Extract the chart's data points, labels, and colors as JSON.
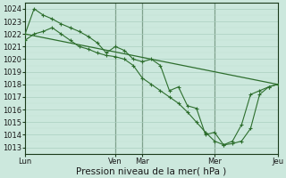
{
  "title": "",
  "xlabel": "Pression niveau de la mer( hPa )",
  "ylabel": "",
  "ylim": [
    1012.5,
    1024.5
  ],
  "xlim": [
    0,
    28
  ],
  "bg_color": "#cce8dd",
  "grid_major_color": "#aacfbf",
  "grid_minor_color": "#c0dfcf",
  "line_color": "#2d6e2d",
  "tick_label_fontsize": 6,
  "xlabel_fontsize": 7.5,
  "day_positions": [
    0,
    10,
    13,
    21,
    28
  ],
  "day_labels": [
    "Lun",
    "Ven",
    "Mar",
    "Mer",
    "Jeu"
  ],
  "yticks": [
    1013,
    1014,
    1015,
    1016,
    1017,
    1018,
    1019,
    1020,
    1021,
    1022,
    1023,
    1024
  ],
  "line1_x": [
    0,
    1,
    2,
    3,
    4,
    5,
    6,
    7,
    8,
    9,
    10,
    11,
    12,
    13,
    14,
    15,
    16,
    17,
    18,
    19,
    20,
    21,
    22,
    23,
    24,
    25,
    26,
    27,
    28
  ],
  "line1_y": [
    1022.0,
    1024.0,
    1023.5,
    1023.2,
    1022.8,
    1022.5,
    1022.2,
    1021.8,
    1021.3,
    1020.5,
    1021.0,
    1020.7,
    1020.0,
    1019.8,
    1020.0,
    1019.5,
    1017.5,
    1017.8,
    1016.3,
    1016.1,
    1014.0,
    1014.2,
    1013.2,
    1013.5,
    1014.8,
    1017.2,
    1017.5,
    1017.8,
    1018.0
  ],
  "line2_x": [
    0,
    28
  ],
  "line2_y": [
    1022.0,
    1018.0
  ],
  "line3_x": [
    0,
    1,
    2,
    3,
    4,
    5,
    6,
    7,
    8,
    9,
    10,
    11,
    12,
    13,
    14,
    15,
    16,
    17,
    18,
    19,
    20,
    21,
    22,
    23,
    24,
    25,
    26,
    27,
    28
  ],
  "line3_y": [
    1021.5,
    1022.0,
    1022.2,
    1022.5,
    1022.0,
    1021.5,
    1021.0,
    1020.8,
    1020.5,
    1020.3,
    1020.2,
    1020.0,
    1019.5,
    1018.5,
    1018.0,
    1017.5,
    1017.0,
    1016.5,
    1015.8,
    1015.0,
    1014.2,
    1013.5,
    1013.2,
    1013.3,
    1013.5,
    1014.5,
    1017.2,
    1017.8,
    1018.0
  ]
}
